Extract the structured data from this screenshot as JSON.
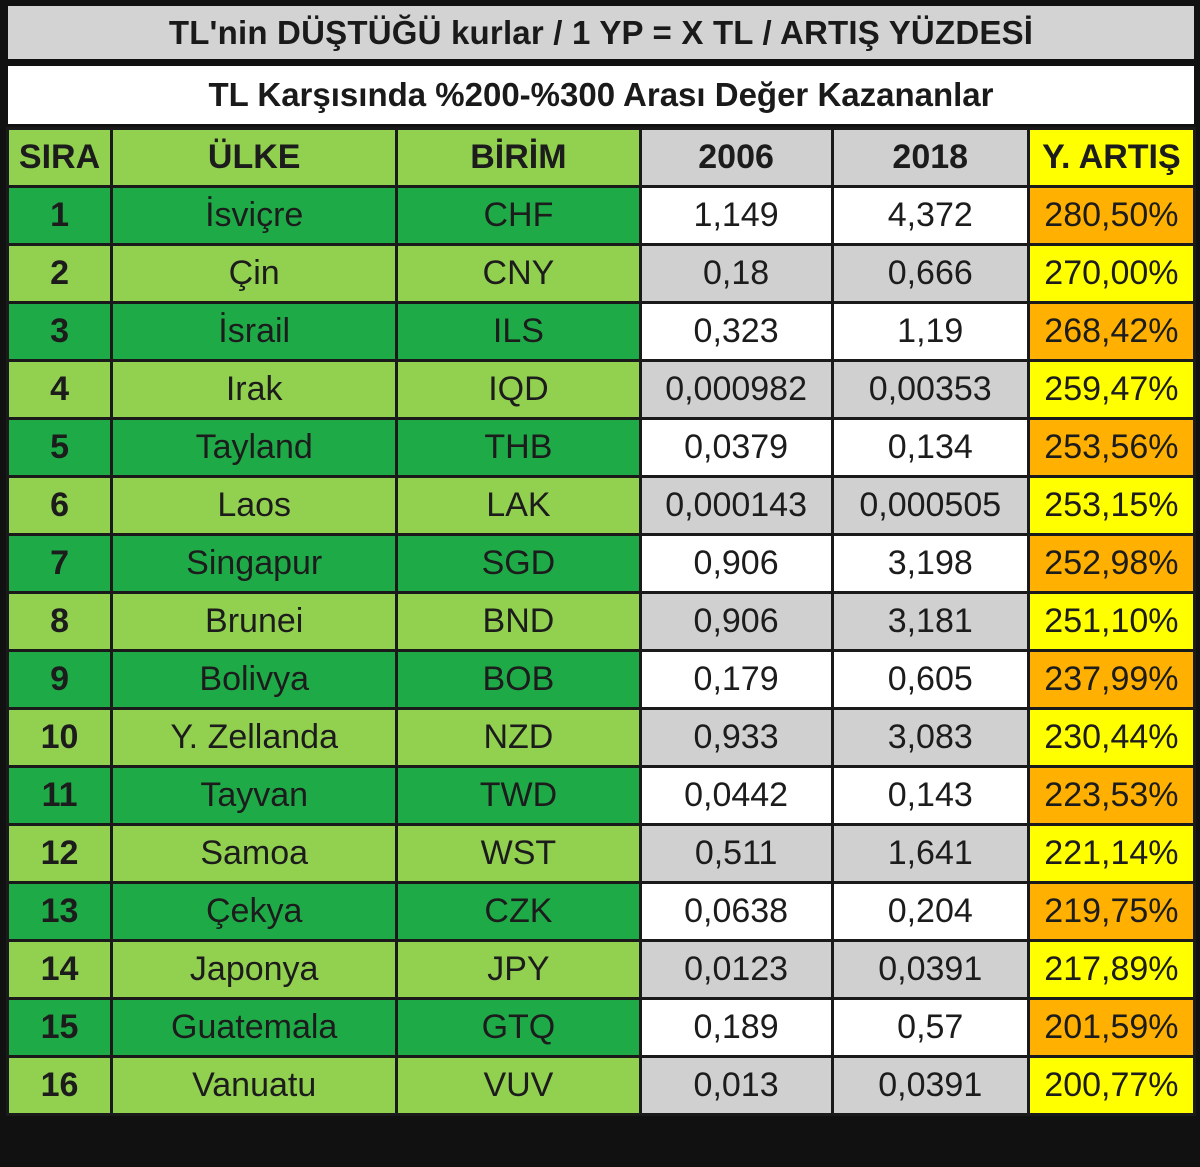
{
  "title": "TL'nin DÜŞTÜĞÜ kurlar / 1 YP = X TL / ARTIŞ YÜZDESİ",
  "subtitle": "TL Karşısında %200-%300 Arası Değer Kazananlar",
  "columns": {
    "sira": "SIRA",
    "ulke": "ÜLKE",
    "birim": "BİRİM",
    "y2006": "2006",
    "y2018": "2018",
    "artis": "Y. ARTIŞ"
  },
  "colors": {
    "header_green": "#92d050",
    "row_dark_green": "#1faa48",
    "row_light_green": "#92d050",
    "header_gray": "#d0d0d0",
    "white": "#ffffff",
    "yellow": "#ffff00",
    "orange": "#ffb000"
  },
  "rows": [
    {
      "sira": "1",
      "ulke": "İsviçre",
      "birim": "CHF",
      "y2006": "1,149",
      "y2018": "4,372",
      "artis": "280,50%"
    },
    {
      "sira": "2",
      "ulke": "Çin",
      "birim": "CNY",
      "y2006": "0,18",
      "y2018": "0,666",
      "artis": "270,00%"
    },
    {
      "sira": "3",
      "ulke": "İsrail",
      "birim": "ILS",
      "y2006": "0,323",
      "y2018": "1,19",
      "artis": "268,42%"
    },
    {
      "sira": "4",
      "ulke": "Irak",
      "birim": "IQD",
      "y2006": "0,000982",
      "y2018": "0,00353",
      "artis": "259,47%"
    },
    {
      "sira": "5",
      "ulke": "Tayland",
      "birim": "THB",
      "y2006": "0,0379",
      "y2018": "0,134",
      "artis": "253,56%"
    },
    {
      "sira": "6",
      "ulke": "Laos",
      "birim": "LAK",
      "y2006": "0,000143",
      "y2018": "0,000505",
      "artis": "253,15%"
    },
    {
      "sira": "7",
      "ulke": "Singapur",
      "birim": "SGD",
      "y2006": "0,906",
      "y2018": "3,198",
      "artis": "252,98%"
    },
    {
      "sira": "8",
      "ulke": "Brunei",
      "birim": "BND",
      "y2006": "0,906",
      "y2018": "3,181",
      "artis": "251,10%"
    },
    {
      "sira": "9",
      "ulke": "Bolivya",
      "birim": "BOB",
      "y2006": "0,179",
      "y2018": "0,605",
      "artis": "237,99%"
    },
    {
      "sira": "10",
      "ulke": "Y. Zellanda",
      "birim": "NZD",
      "y2006": "0,933",
      "y2018": "3,083",
      "artis": "230,44%"
    },
    {
      "sira": "11",
      "ulke": "Tayvan",
      "birim": "TWD",
      "y2006": "0,0442",
      "y2018": "0,143",
      "artis": "223,53%"
    },
    {
      "sira": "12",
      "ulke": "Samoa",
      "birim": "WST",
      "y2006": "0,511",
      "y2018": "1,641",
      "artis": "221,14%"
    },
    {
      "sira": "13",
      "ulke": "Çekya",
      "birim": "CZK",
      "y2006": "0,0638",
      "y2018": "0,204",
      "artis": "219,75%"
    },
    {
      "sira": "14",
      "ulke": "Japonya",
      "birim": "JPY",
      "y2006": "0,0123",
      "y2018": "0,0391",
      "artis": "217,89%"
    },
    {
      "sira": "15",
      "ulke": "Guatemala",
      "birim": "GTQ",
      "y2006": "0,189",
      "y2018": "0,57",
      "artis": "201,59%"
    },
    {
      "sira": "16",
      "ulke": "Vanuatu",
      "birim": "VUV",
      "y2006": "0,013",
      "y2018": "0,0391",
      "artis": "200,77%"
    }
  ]
}
